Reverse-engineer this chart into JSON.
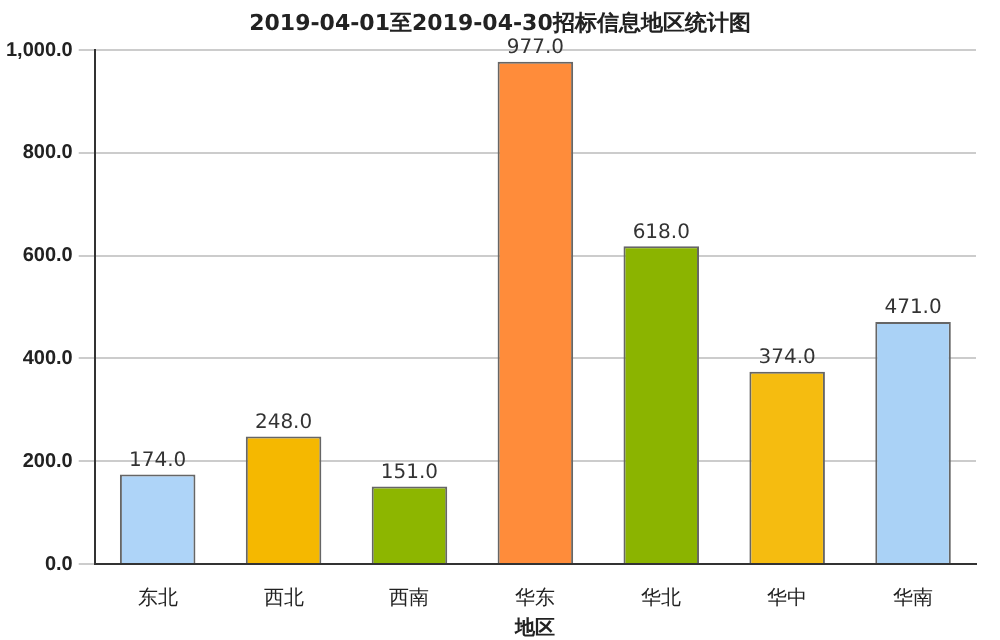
{
  "chart_data": {
    "type": "bar",
    "title": "2019-04-01至2019-04-30招标信息地区统计图",
    "xlabel": "地区",
    "categories": [
      "东北",
      "西北",
      "西南",
      "华东",
      "华北",
      "华中",
      "华南"
    ],
    "values": [
      174,
      248,
      151,
      977,
      618,
      374,
      471
    ],
    "colors": [
      "#aed4f8",
      "#f5b800",
      "#8db600",
      "#ff8c3a",
      "#8bb400",
      "#f5bc10",
      "#aad2f6"
    ],
    "value_labels": [
      "174.0",
      "248.0",
      "151.0",
      "977.0",
      "618.0",
      "374.0",
      "471.0"
    ],
    "ylim": [
      0,
      1000
    ],
    "yticks": [
      {
        "value": 0,
        "label": "0.0"
      },
      {
        "value": 200,
        "label": "200.0"
      },
      {
        "value": 400,
        "label": "400.0"
      },
      {
        "value": 600,
        "label": "600.0"
      },
      {
        "value": 800,
        "label": "800.0"
      },
      {
        "value": 1000,
        "label": "1,000.0"
      }
    ],
    "grid": "y"
  }
}
